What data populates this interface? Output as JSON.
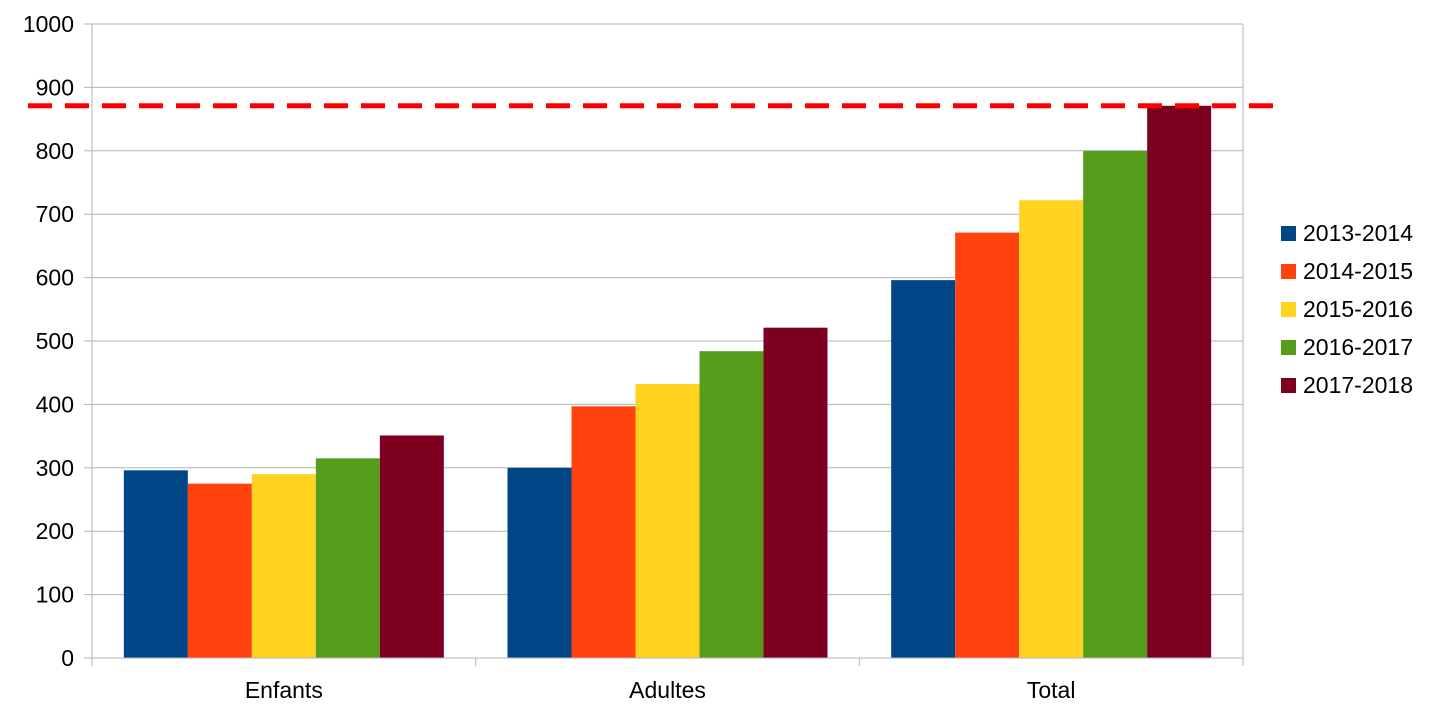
{
  "chart_data": {
    "type": "bar",
    "categories": [
      "Enfants",
      "Adultes",
      "Total"
    ],
    "series": [
      {
        "name": "2013-2014",
        "color": "#004586",
        "values": [
          296,
          300,
          596
        ]
      },
      {
        "name": "2014-2015",
        "color": "#ff420e",
        "values": [
          275,
          397,
          671
        ]
      },
      {
        "name": "2015-2016",
        "color": "#ffd320",
        "values": [
          290,
          432,
          722
        ]
      },
      {
        "name": "2016-2017",
        "color": "#579d1c",
        "values": [
          315,
          484,
          800
        ]
      },
      {
        "name": "2017-2018",
        "color": "#7e0021",
        "values": [
          351,
          521,
          871
        ]
      }
    ],
    "ylim": [
      0,
      1000
    ],
    "yticks": [
      0,
      100,
      200,
      300,
      400,
      500,
      600,
      700,
      800,
      900,
      1000
    ],
    "reference_line": {
      "value": 871,
      "color": "#ff0000",
      "style": "dashed"
    },
    "grid": true,
    "legend_position": "right"
  }
}
